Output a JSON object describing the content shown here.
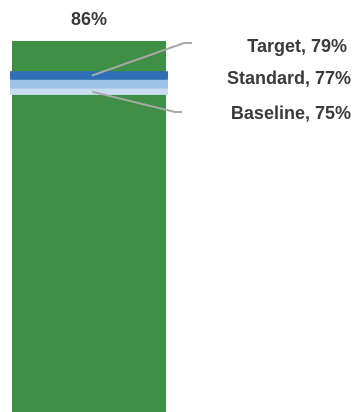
{
  "chart_data": {
    "type": "bar",
    "value": 86,
    "value_label": "86%",
    "ylim": [
      0,
      86
    ],
    "bar_color": "#3f8f47",
    "markers": [
      {
        "name": "Target",
        "value": 79,
        "label": "Target, 79%",
        "color": "#2f6fb7"
      },
      {
        "name": "Standard",
        "value": 77,
        "label": "Standard, 77%",
        "color": "#9cc2e8"
      },
      {
        "name": "Baseline",
        "value": 75,
        "label": "Baseline, 75%",
        "color": "#c9dcf2"
      }
    ],
    "leader_color": "#a8a8a8"
  }
}
